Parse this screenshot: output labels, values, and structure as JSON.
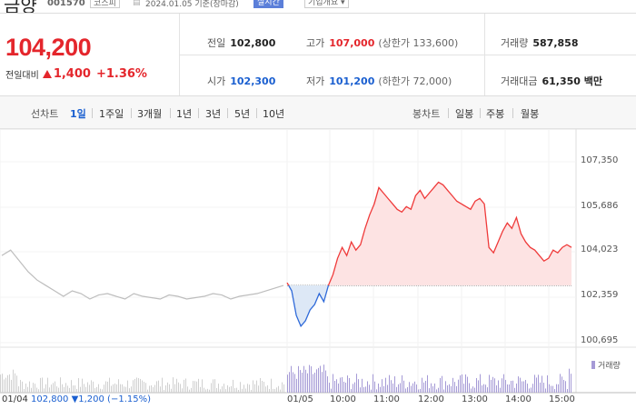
{
  "header": {
    "name": "금양",
    "code": "001570",
    "market": "코스피",
    "date": "2024.01.05 기준(장마감)",
    "realtime_label": "실시간",
    "company_info_label": "기업개요 ▾"
  },
  "price": {
    "current": "104,200",
    "change_label": "전일대비",
    "change_abs": "1,400",
    "change_pct": "+1.36%"
  },
  "stats": {
    "prev_close_label": "전일",
    "prev_close": "102,800",
    "high_label": "고가",
    "high": "107,000",
    "upper_limit": "(상한가 133,600)",
    "volume_label": "거래량",
    "volume": "587,858",
    "open_label": "시가",
    "open": "102,300",
    "low_label": "저가",
    "low": "101,200",
    "lower_limit": "(하한가 72,000)",
    "amount_label": "거래대금",
    "amount": "61,350 백만"
  },
  "periods": {
    "line_chart_label": "선차트",
    "items": [
      "1일",
      "1주일",
      "3개월",
      "1년",
      "3년",
      "5년",
      "10년"
    ],
    "active": "1일",
    "candle_label": "봉차트",
    "candle_items": [
      "일봉",
      "주봉",
      "월봉"
    ]
  },
  "chart_data": {
    "type": "line",
    "y_ticks": [
      "107,350",
      "105,686",
      "104,023",
      "102,359",
      "100,695"
    ],
    "ylim": [
      100695,
      107350
    ],
    "prev_close": 102800,
    "x_ticks": [
      "01/04",
      "01/05",
      "10:00",
      "11:00",
      "12:00",
      "13:00",
      "14:00",
      "15:00"
    ],
    "volume_label": "거래량",
    "prev_day_summary": {
      "date": "01/04",
      "close": "102,800",
      "change": "▼1,200 (−1.15%)"
    },
    "prev_day_prices": [
      103900,
      104100,
      103700,
      103300,
      103000,
      102800,
      102600,
      102400,
      102600,
      102500,
      102300,
      102450,
      102500,
      102400,
      102300,
      102500,
      102400,
      102350,
      102300,
      102450,
      102400,
      102300,
      102350,
      102400,
      102500,
      102450,
      102300,
      102400,
      102450,
      102500,
      102600,
      102700,
      102800
    ],
    "today_prices": [
      102900,
      102600,
      101700,
      101300,
      101500,
      101900,
      102100,
      102500,
      102200,
      102800,
      103200,
      103800,
      104200,
      103900,
      104400,
      104100,
      104300,
      104900,
      105400,
      105800,
      106400,
      106200,
      106000,
      105800,
      105600,
      105500,
      105700,
      105600,
      106100,
      106300,
      106000,
      106200,
      106400,
      106600,
      106500,
      106300,
      106100,
      105900,
      105800,
      105700,
      105600,
      105900,
      106000,
      105800,
      104200,
      104000,
      104400,
      104800,
      105100,
      104900,
      105300,
      104700,
      104400,
      104200,
      104100,
      103900,
      103700,
      103800,
      104100,
      104000,
      104200,
      104300,
      104200
    ]
  }
}
